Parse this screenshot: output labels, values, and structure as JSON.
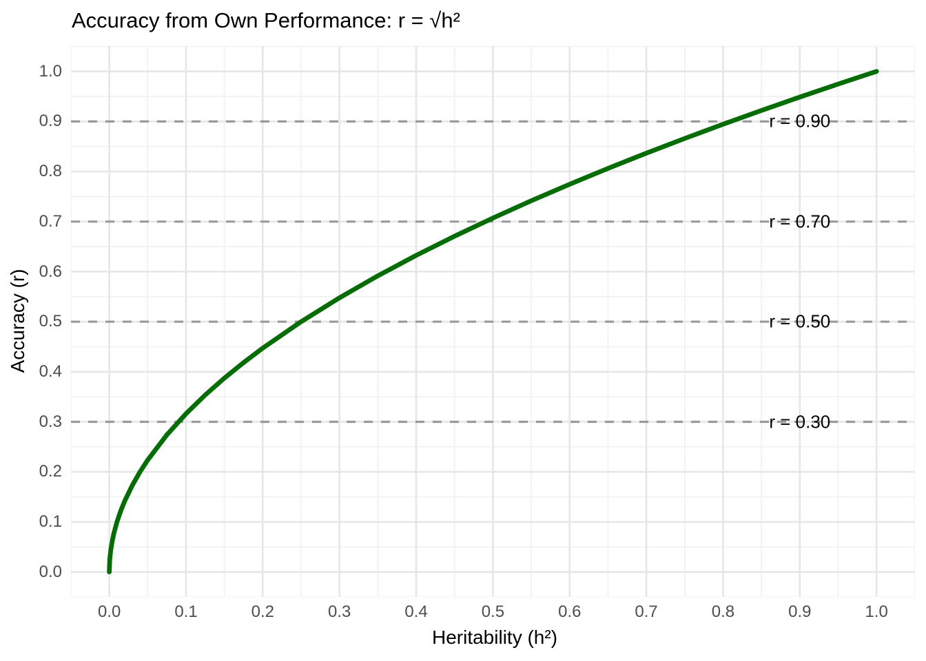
{
  "chart_data": {
    "type": "line",
    "title": "Accuracy from Own Performance: r = √h²",
    "xlabel": "Heritability (h²)",
    "ylabel": "Accuracy (r)",
    "xlim": [
      0,
      1
    ],
    "ylim": [
      0,
      1
    ],
    "grid": "white panel with light-gray major gridlines every 0.1 and minor gridlines every 0.05",
    "legend": "none",
    "x_ticks": [
      {
        "value": 0.0,
        "label": "0.0"
      },
      {
        "value": 0.1,
        "label": "0.1"
      },
      {
        "value": 0.2,
        "label": "0.2"
      },
      {
        "value": 0.3,
        "label": "0.3"
      },
      {
        "value": 0.4,
        "label": "0.4"
      },
      {
        "value": 0.5,
        "label": "0.5"
      },
      {
        "value": 0.6,
        "label": "0.6"
      },
      {
        "value": 0.7,
        "label": "0.7"
      },
      {
        "value": 0.8,
        "label": "0.8"
      },
      {
        "value": 0.9,
        "label": "0.9"
      },
      {
        "value": 1.0,
        "label": "1.0"
      }
    ],
    "y_ticks": [
      {
        "value": 0.0,
        "label": "0.0"
      },
      {
        "value": 0.1,
        "label": "0.1"
      },
      {
        "value": 0.2,
        "label": "0.2"
      },
      {
        "value": 0.3,
        "label": "0.3"
      },
      {
        "value": 0.4,
        "label": "0.4"
      },
      {
        "value": 0.5,
        "label": "0.5"
      },
      {
        "value": 0.6,
        "label": "0.6"
      },
      {
        "value": 0.7,
        "label": "0.7"
      },
      {
        "value": 0.8,
        "label": "0.8"
      },
      {
        "value": 0.9,
        "label": "0.9"
      },
      {
        "value": 1.0,
        "label": "1.0"
      }
    ],
    "series": [
      {
        "name": "r = sqrt(h2)",
        "color": "#066c06",
        "x": [
          0,
          0.0005,
          0.001,
          0.002,
          0.004,
          0.006,
          0.01,
          0.015,
          0.02,
          0.03,
          0.04,
          0.05,
          0.075,
          0.1,
          0.125,
          0.15,
          0.175,
          0.2,
          0.25,
          0.3,
          0.35,
          0.4,
          0.45,
          0.5,
          0.55,
          0.6,
          0.65,
          0.7,
          0.75,
          0.8,
          0.85,
          0.9,
          0.95,
          1.0
        ],
        "y": [
          0,
          0.0224,
          0.0316,
          0.0447,
          0.0632,
          0.0775,
          0.1,
          0.1225,
          0.1414,
          0.1732,
          0.2,
          0.2236,
          0.2739,
          0.3162,
          0.3536,
          0.3873,
          0.4183,
          0.4472,
          0.5,
          0.5477,
          0.5916,
          0.6325,
          0.6708,
          0.7071,
          0.7416,
          0.7746,
          0.8062,
          0.8367,
          0.866,
          0.8944,
          0.922,
          0.9487,
          0.9747,
          1.0
        ]
      }
    ],
    "reference_lines": [
      {
        "y": 0.9,
        "label": "r = 0.90"
      },
      {
        "y": 0.7,
        "label": "r = 0.70"
      },
      {
        "y": 0.5,
        "label": "r = 0.50"
      },
      {
        "y": 0.3,
        "label": "r = 0.30"
      }
    ],
    "reference_label_x": 0.9,
    "colors": {
      "curve": "#066c06",
      "reference_dash": "#999999",
      "grid_major": "#e6e6e6",
      "grid_minor": "#f0f0f0",
      "tick_text": "#4d4d4d",
      "label_text": "#000000",
      "background": "#ffffff"
    }
  }
}
